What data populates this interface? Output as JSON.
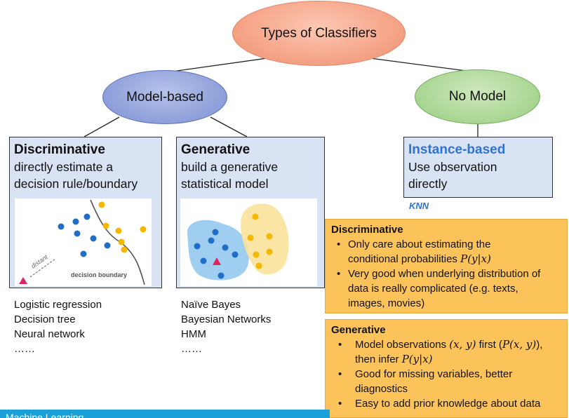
{
  "nodes": {
    "root": "Types of Classifiers",
    "model_based": "Model-based",
    "no_model": "No Model"
  },
  "boxes": {
    "discriminative": {
      "title": "Discriminative",
      "line1": "directly estimate a",
      "line2": "decision rule/boundary"
    },
    "generative": {
      "title": "Generative",
      "line1": "build a generative",
      "line2": "statistical model"
    },
    "instance": {
      "title": "Instance-based",
      "line1": "Use observation",
      "line2": "directly"
    }
  },
  "figure_disc": {
    "distant_label": "distant",
    "boundary_label": "decision boundary"
  },
  "lists": {
    "discriminative": [
      "Logistic regression",
      "Decision tree",
      "Neural network",
      "……"
    ],
    "generative": [
      "Naïve Bayes",
      "Bayesian Networks",
      "HMM",
      "……"
    ]
  },
  "knn": "KNN",
  "notes": {
    "discriminative": {
      "title": "Discriminative",
      "b1_a": "Only care about estimating the",
      "b1_b": "conditional probabilities ",
      "b1_math": "P(y|x)",
      "b2_a": "Very good when underlying distribution of",
      "b2_b": "data is really complicated (e.g. texts,",
      "b2_c": "images, movies)"
    },
    "generative": {
      "title": "Generative",
      "b1_a": "Model observations ",
      "b1_math1": "(x, y)",
      "b1_mid": " first (",
      "b1_math2": "P(x, y)",
      "b1_end": "),",
      "b1_b": "then infer ",
      "b1_math3": "P(y|x)",
      "b2_a": "Good for missing variables, better",
      "b2_b": "diagnostics",
      "b3": "Easy to add prior knowledge about data"
    }
  },
  "footer": "Machine Learning",
  "colors": {
    "blue_dot": "#1f6ec7",
    "yellow_dot": "#f5b800",
    "red_tri": "#e0245e",
    "accent": "#2e74d6"
  }
}
